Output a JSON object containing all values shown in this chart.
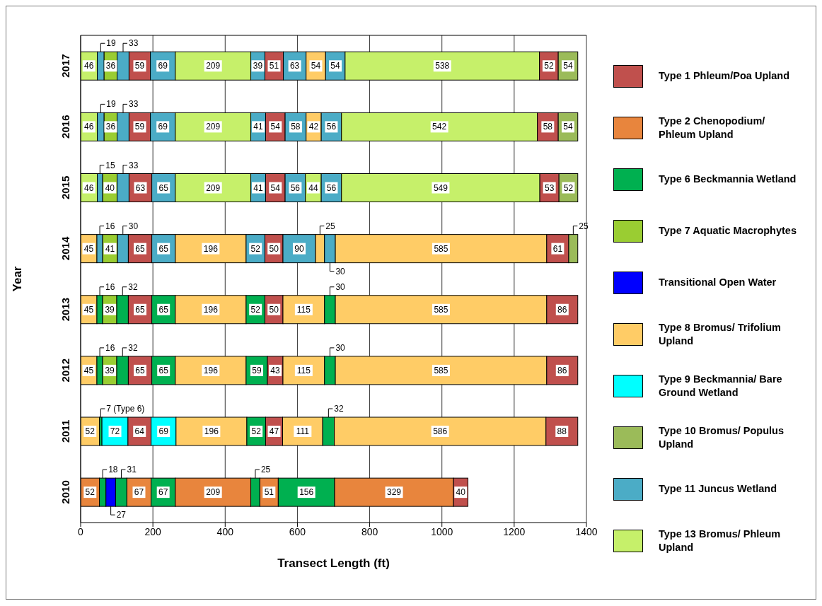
{
  "chart_data": {
    "type": "bar",
    "orientation": "horizontal",
    "stacked": true,
    "xlabel": "Transect Length (ft)",
    "ylabel": "Year",
    "categories": [
      "2017",
      "2016",
      "2015",
      "2014",
      "2013",
      "2012",
      "2011",
      "2010"
    ],
    "xlim": [
      0,
      1400
    ],
    "xticks": [
      0,
      200,
      400,
      600,
      800,
      1000,
      1200,
      1400
    ],
    "grid": "x",
    "legend": "right",
    "data_labels": true,
    "series": [
      {
        "name": "Type 1 Phleum/Poa Upland",
        "color": "#c0504d",
        "values": [
          null,
          null,
          null,
          null,
          null,
          null,
          null,
          null
        ]
      },
      {
        "name": "Type 2 Chenopodium/ Phleum Upland",
        "color": "#e8853d",
        "values": [
          null,
          null,
          null,
          null,
          null,
          null,
          null,
          null
        ]
      },
      {
        "name": "Type 6 Beckmannia Wetland",
        "color": "#00b050",
        "values": [
          null,
          null,
          null,
          null,
          null,
          null,
          null,
          null
        ]
      },
      {
        "name": "Type 7 Aquatic Macrophytes",
        "color": "#9acd32",
        "values": [
          null,
          null,
          null,
          null,
          null,
          null,
          null,
          null
        ]
      },
      {
        "name": "Transitional Open Water",
        "color": "#0000ff",
        "values": [
          null,
          null,
          null,
          null,
          null,
          null,
          null,
          null
        ]
      },
      {
        "name": "Type 8 Bromus/ Trifolium Upland",
        "color": "#ffcc66",
        "values": [
          null,
          null,
          null,
          null,
          null,
          null,
          null,
          null
        ]
      },
      {
        "name": "Type 9 Beckmannia/ Bare Ground Wetland",
        "color": "#00ffff",
        "values": [
          null,
          null,
          null,
          null,
          null,
          null,
          null,
          null
        ]
      },
      {
        "name": "Type 10 Bromus/ Populus Upland",
        "color": "#9bbb59",
        "values": [
          null,
          null,
          null,
          null,
          null,
          null,
          null,
          null
        ]
      },
      {
        "name": "Type 11 Juncus Wetland",
        "color": "#4bacc6",
        "values": [
          null,
          null,
          null,
          null,
          null,
          null,
          null,
          null
        ]
      },
      {
        "name": "Type 13 Bromus/ Phleum Upland",
        "color": "#c6f06a",
        "values": [
          null,
          null,
          null,
          null,
          null,
          null,
          null,
          null
        ]
      },
      {
        "color": "#c6f06a",
        "values": [
          46,
          46,
          46,
          null,
          null,
          null,
          null,
          null
        ]
      },
      {
        "color": "#ffcc66",
        "values": [
          null,
          null,
          null,
          45,
          45,
          45,
          52,
          null
        ]
      },
      {
        "color": "#e8853d",
        "values": [
          null,
          null,
          null,
          null,
          null,
          null,
          null,
          52
        ]
      },
      {
        "color": "#4bacc6",
        "values": [
          19,
          19,
          15,
          16,
          null,
          null,
          null,
          null
        ]
      },
      {
        "color": "#00b050",
        "values": [
          null,
          null,
          null,
          null,
          16,
          16,
          7,
          18
        ],
        "value_labels": [
          null,
          null,
          null,
          null,
          "16",
          "16",
          "7 (Type 6)",
          "18"
        ]
      },
      {
        "color": "#9acd32",
        "values": [
          36,
          36,
          40,
          41,
          39,
          39,
          null,
          null
        ]
      },
      {
        "color": "#00ffff",
        "values": [
          null,
          null,
          null,
          null,
          null,
          null,
          72,
          null
        ]
      },
      {
        "color": "#0000ff",
        "values": [
          null,
          null,
          null,
          null,
          null,
          null,
          null,
          27
        ]
      },
      {
        "color": "#4bacc6",
        "values": [
          33,
          33,
          33,
          30,
          null,
          null,
          null,
          null
        ]
      },
      {
        "color": "#00b050",
        "values": [
          null,
          null,
          null,
          null,
          32,
          32,
          null,
          31
        ]
      },
      {
        "color": "#c0504d",
        "values": [
          59,
          59,
          63,
          65,
          65,
          65,
          64,
          null
        ]
      },
      {
        "color": "#e8853d",
        "values": [
          null,
          null,
          null,
          null,
          null,
          null,
          null,
          67
        ]
      },
      {
        "color": "#4bacc6",
        "values": [
          69,
          69,
          65,
          65,
          null,
          null,
          null,
          null
        ]
      },
      {
        "color": "#00b050",
        "values": [
          null,
          null,
          null,
          null,
          65,
          65,
          null,
          67
        ]
      },
      {
        "color": "#00ffff",
        "values": [
          null,
          null,
          null,
          null,
          null,
          null,
          69,
          null
        ]
      },
      {
        "color": "#c6f06a",
        "values": [
          209,
          209,
          209,
          null,
          null,
          null,
          null,
          null
        ]
      },
      {
        "color": "#ffcc66",
        "values": [
          null,
          null,
          null,
          196,
          196,
          196,
          196,
          null
        ]
      },
      {
        "color": "#e8853d",
        "values": [
          null,
          null,
          null,
          null,
          null,
          null,
          null,
          209
        ]
      },
      {
        "color": "#4bacc6",
        "values": [
          39,
          41,
          41,
          52,
          null,
          null,
          null,
          null
        ]
      },
      {
        "color": "#00b050",
        "values": [
          null,
          null,
          null,
          null,
          52,
          59,
          52,
          25
        ]
      },
      {
        "color": "#c0504d",
        "values": [
          51,
          54,
          54,
          50,
          50,
          43,
          47,
          null
        ]
      },
      {
        "color": "#e8853d",
        "values": [
          null,
          null,
          null,
          null,
          null,
          null,
          null,
          51
        ]
      },
      {
        "color": "#4bacc6",
        "values": [
          63,
          58,
          56,
          90,
          null,
          null,
          null,
          null
        ]
      },
      {
        "color": "#ffcc66",
        "values": [
          54,
          42,
          null,
          25,
          115,
          115,
          111,
          null
        ]
      },
      {
        "color": "#c6f06a",
        "values": [
          null,
          null,
          44,
          null,
          null,
          null,
          null,
          null
        ]
      },
      {
        "color": "#4bacc6",
        "values": [
          54,
          56,
          56,
          30,
          null,
          null,
          null,
          null
        ]
      },
      {
        "color": "#00b050",
        "values": [
          null,
          null,
          null,
          null,
          30,
          30,
          32,
          156
        ]
      },
      {
        "color": "#c6f06a",
        "values": [
          538,
          542,
          549,
          null,
          null,
          null,
          null,
          null
        ]
      },
      {
        "color": "#ffcc66",
        "values": [
          null,
          null,
          null,
          585,
          585,
          585,
          586,
          null
        ]
      },
      {
        "color": "#e8853d",
        "values": [
          null,
          null,
          null,
          null,
          null,
          null,
          null,
          329
        ]
      },
      {
        "color": "#c0504d",
        "values": [
          52,
          58,
          53,
          61,
          86,
          86,
          88,
          40
        ]
      },
      {
        "color": "#9bbb59",
        "values": [
          54,
          54,
          52,
          25,
          null,
          null,
          null,
          null
        ]
      }
    ]
  }
}
